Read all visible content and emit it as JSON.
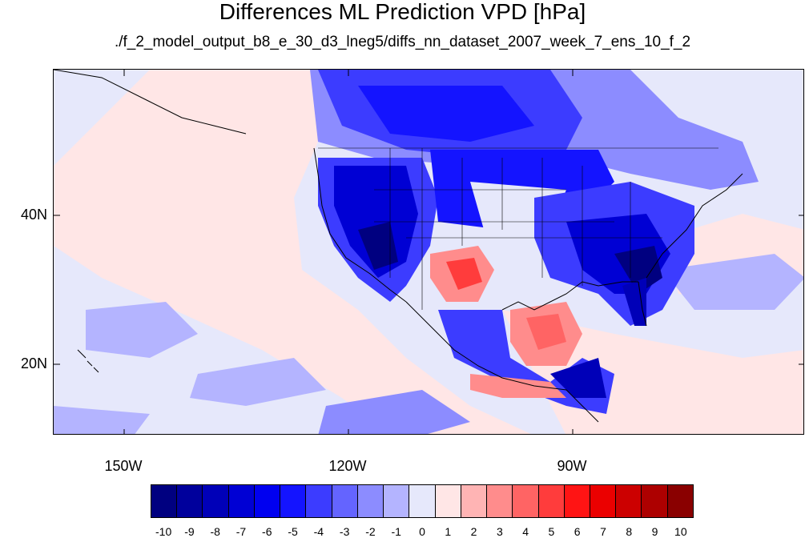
{
  "title": "Differences ML Prediction VPD [hPa]",
  "subtitle": "./f_2_model_output_b8_e_30_d3_lneg5/diffs_nn_dataset_2007_week_7_ens_10_f_2",
  "axes": {
    "lat_labels": [
      "40N",
      "20N"
    ],
    "lon_labels": [
      "150W",
      "120W",
      "90W"
    ]
  },
  "colorbar": {
    "labels": [
      "-10",
      "-9",
      "-8",
      "-7",
      "-6",
      "-5",
      "-4",
      "-3",
      "-2",
      "-1",
      "0",
      "1",
      "2",
      "3",
      "4",
      "5",
      "6",
      "7",
      "8",
      "9",
      "10"
    ],
    "colors": [
      "#000080",
      "#00009c",
      "#0000b8",
      "#0000d4",
      "#0000f0",
      "#1414ff",
      "#3c3cff",
      "#6464ff",
      "#8c8cff",
      "#b4b4ff",
      "#e6e8fb",
      "#ffe6e6",
      "#ffb4b4",
      "#ff8c8c",
      "#ff6464",
      "#ff3c3c",
      "#ff1414",
      "#eb0000",
      "#cc0000",
      "#ad0000",
      "#8a0000"
    ]
  },
  "colors": {
    "background_field": "#e6e8fb",
    "light_pink": "#ffe6e6",
    "dark_blue": "#0000b8",
    "mid_blue": "#3c3cff",
    "light_blue": "#b4b4ff",
    "red": "#ff6464"
  }
}
